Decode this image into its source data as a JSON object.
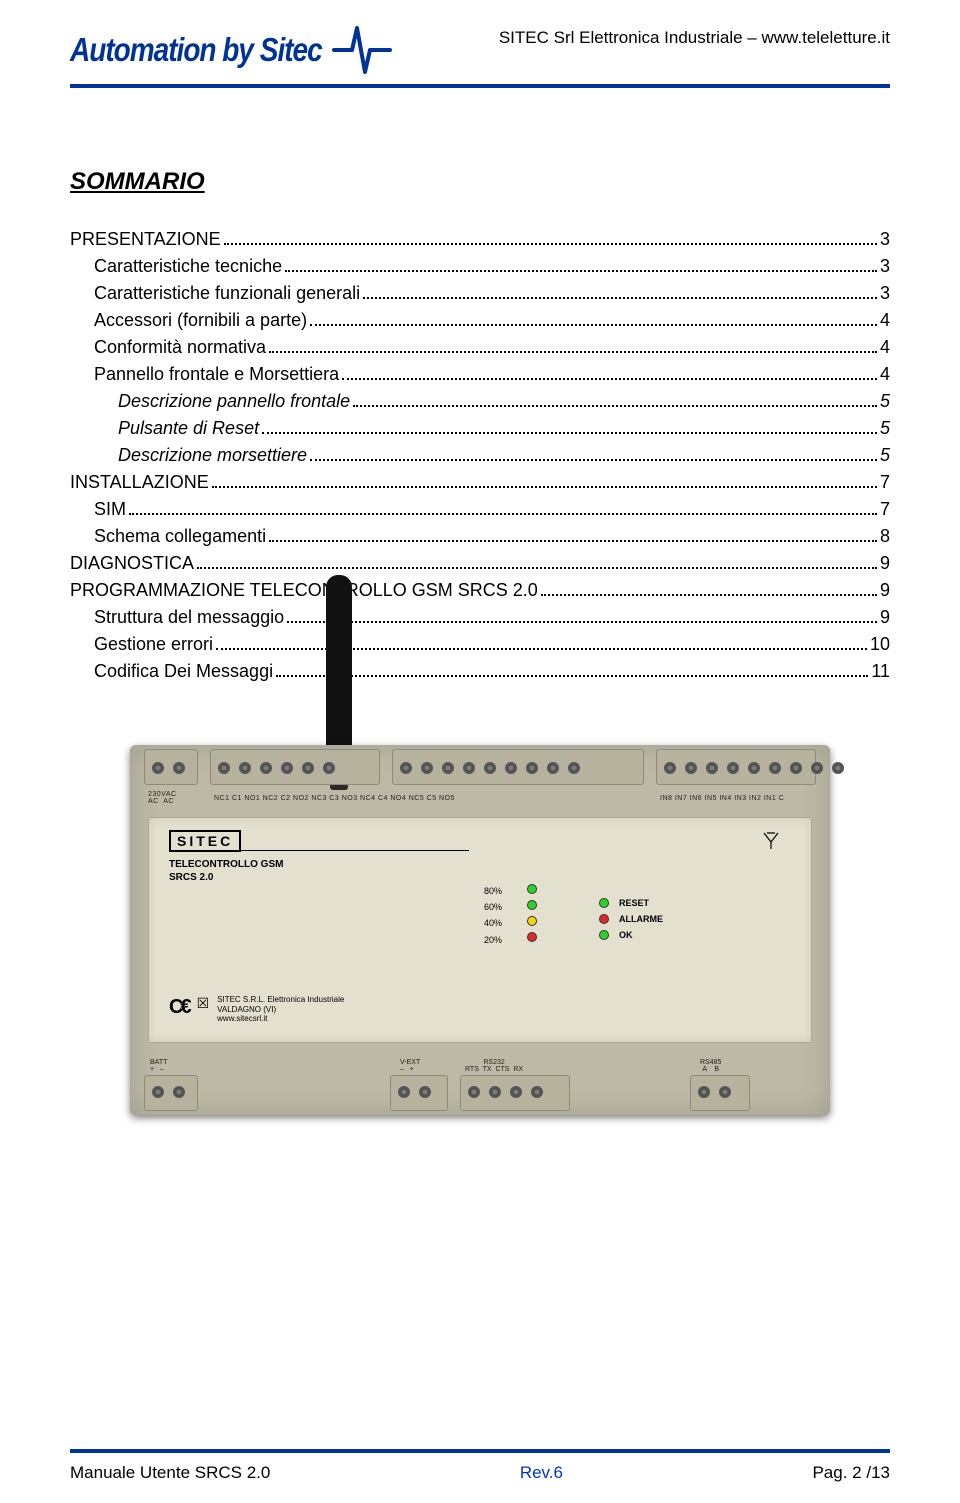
{
  "header": {
    "logo": "Automation by Sitec",
    "right": "SITEC  Srl Elettronica Industriale – www.teleletture.it",
    "sep_color": "#003399"
  },
  "title": "SOMMARIO",
  "toc": [
    {
      "label": "PRESENTAZIONE",
      "page": "3",
      "indent": 0,
      "italic": false
    },
    {
      "label": "Caratteristiche tecniche",
      "page": "3",
      "indent": 1,
      "italic": false
    },
    {
      "label": "Caratteristiche funzionali generali",
      "page": "3",
      "indent": 1,
      "italic": false
    },
    {
      "label": "Accessori (fornibili a parte)",
      "page": "4",
      "indent": 1,
      "italic": false
    },
    {
      "label": "Conformità normativa",
      "page": "4",
      "indent": 1,
      "italic": false
    },
    {
      "label": "Pannello frontale e Morsettiera",
      "page": "4",
      "indent": 1,
      "italic": false
    },
    {
      "label": "Descrizione pannello frontale",
      "page": "5",
      "indent": 2,
      "italic": true
    },
    {
      "label": "Pulsante di Reset",
      "page": "5",
      "indent": 2,
      "italic": true
    },
    {
      "label": "Descrizione morsettiere",
      "page": "5",
      "indent": 2,
      "italic": true
    },
    {
      "label": "INSTALLAZIONE",
      "page": "7",
      "indent": 0,
      "italic": false
    },
    {
      "label": "SIM",
      "page": "7",
      "indent": 1,
      "italic": false
    },
    {
      "label": "Schema collegamenti",
      "page": "8",
      "indent": 1,
      "italic": false
    },
    {
      "label": "DIAGNOSTICA",
      "page": "9",
      "indent": 0,
      "italic": false
    },
    {
      "label": "PROGRAMMAZIONE TELECONTROLLO GSM  SRCS 2.0",
      "page": "9",
      "indent": 0,
      "italic": false
    },
    {
      "label": "Struttura del messaggio",
      "page": "9",
      "indent": 1,
      "italic": false
    },
    {
      "label": "Gestione errori",
      "page": "10",
      "indent": 1,
      "italic": false
    },
    {
      "label": "Codifica Dei Messaggi",
      "page": "11",
      "indent": 1,
      "italic": false
    }
  ],
  "device": {
    "brand": "SITEC",
    "product_line1": "TELECONTROLLO GSM",
    "product_line2": "SRCS 2.0",
    "ce_text1": "SITEC S.R.L. Elettronica Industriale",
    "ce_text2": "VALDAGNO (VI)",
    "ce_text3": "www.sitecsrl.it",
    "signal_pcts": [
      "80%",
      "60%",
      "40%",
      "20%"
    ],
    "signal_led_colors": [
      "#27d427",
      "#27d427",
      "#f5d50a",
      "#e02828"
    ],
    "status": [
      {
        "label": "RESET",
        "color": "#27d427"
      },
      {
        "label": "ALLARME",
        "color": "#e02828"
      },
      {
        "label": "OK",
        "color": "#27d427"
      }
    ],
    "top_labels_left": "230VAC\nAC  AC",
    "top_nc_labels": "NC1  C1  NO1 NC2  C2  NO2       NC3  C3  NO3 NC4  C4  NO4 NC5  C5  NO5",
    "top_in_labels": "IN8  IN7  IN6  IN5  IN4  IN3  IN2  IN1   C",
    "bottom_batt": "BATT\n+   –",
    "bottom_vext": "V-EXT\n–   +",
    "bottom_rs232": "RS232\nRTS  TX  CTS  RX",
    "bottom_rs485": "RS485\nA    B"
  },
  "footer": {
    "left": "Manuale Utente  SRCS  2.0",
    "mid": "Rev.6",
    "right": "Pag.  2 /13"
  }
}
